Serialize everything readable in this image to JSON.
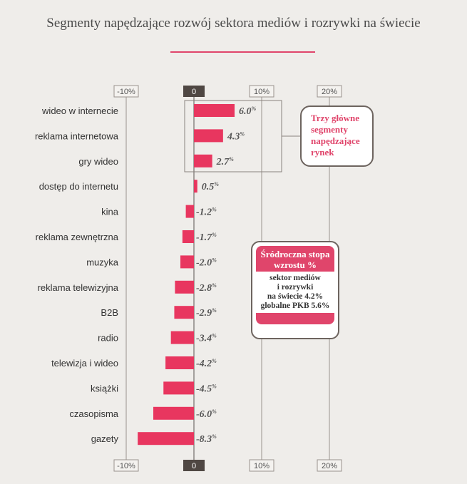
{
  "chart_data": {
    "type": "bar",
    "orientation": "horizontal",
    "title": "Segmenty napędzające rozwój sektora mediów i rozrywki na świecie",
    "categories": [
      "wideo w internecie",
      "reklama internetowa",
      "gry wideo",
      "dostęp do internetu",
      "kina",
      "reklama zewnętrzna",
      "muzyka",
      "reklama telewizyjna",
      "B2B",
      "radio",
      "telewizja i wideo",
      "książki",
      "czasopisma",
      "gazety"
    ],
    "values": [
      6.0,
      4.3,
      2.7,
      0.5,
      -1.2,
      -1.7,
      -2.0,
      -2.8,
      -2.9,
      -3.4,
      -4.2,
      -4.5,
      -6.0,
      -8.3
    ],
    "value_labels": [
      "6.0",
      "4.3",
      "2.7",
      "0.5",
      "-1.2",
      "-1.7",
      "-2.0",
      "-2.8",
      "-2.9",
      "-3.4",
      "-4.2",
      "-4.5",
      "-6.0",
      "-8.3"
    ],
    "value_suffix": "%",
    "xlim": [
      -10,
      20
    ],
    "ticks": [
      -10,
      0,
      10,
      20
    ],
    "tick_labels": [
      "-10%",
      "0",
      "10%",
      "20%"
    ],
    "grid": true,
    "bar_color": "#e8365f"
  },
  "callouts": {
    "top_three": "Trzy główne segmenty napędzające rynek",
    "cagr_header": "Śródroczna stopa wzrostu %",
    "cagr_lines": [
      "sektor mediów",
      "i rozrywki",
      "na świecie 4.2%",
      "globalne PKB 5.6%"
    ]
  },
  "colors": {
    "accent": "#e0456b",
    "background": "#efedea",
    "axis": "#5a5250"
  }
}
